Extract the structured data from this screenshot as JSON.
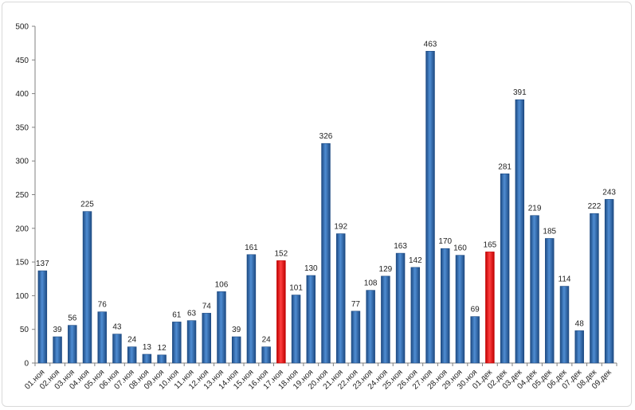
{
  "chart_data": {
    "type": "bar",
    "title": "",
    "xlabel": "",
    "ylabel": "",
    "ylim": [
      0,
      500
    ],
    "yticks": [
      0,
      50,
      100,
      150,
      200,
      250,
      300,
      350,
      400,
      450,
      500
    ],
    "grid": false,
    "categories": [
      "01.ноя",
      "02.ноя",
      "03.ноя",
      "04.ноя",
      "05.ноя",
      "06.ноя",
      "07.ноя",
      "08.ноя",
      "09.ноя",
      "10.ноя",
      "11.ноя",
      "12.ноя",
      "13.ноя",
      "14.ноя",
      "15.ноя",
      "16.ноя",
      "17.ноя",
      "18.ноя",
      "19.ноя",
      "20.ноя",
      "21.ноя",
      "22.ноя",
      "23.ноя",
      "24.ноя",
      "25.ноя",
      "26.ноя",
      "27.ноя",
      "28.ноя",
      "29.ноя",
      "30.ноя",
      "01.дек",
      "02.дек",
      "03.дек",
      "04.дек",
      "05.дек",
      "06.дек",
      "07.дек",
      "08.дек",
      "09.дек"
    ],
    "values": [
      137,
      39,
      56,
      225,
      76,
      43,
      24,
      13,
      12,
      61,
      63,
      74,
      106,
      39,
      161,
      24,
      152,
      101,
      130,
      326,
      192,
      77,
      108,
      129,
      163,
      142,
      463,
      170,
      160,
      69,
      165,
      281,
      391,
      219,
      185,
      114,
      48,
      222,
      243
    ],
    "highlighted_indices": [
      16,
      30
    ],
    "colors": {
      "bar": "#2f6db5",
      "bar_dark": "#1d4a82",
      "bar_light": "#5a95d6",
      "highlight": "#ff0000",
      "highlight_dark": "#c00000",
      "highlight_light": "#ff5050",
      "axis": "#808080"
    }
  }
}
